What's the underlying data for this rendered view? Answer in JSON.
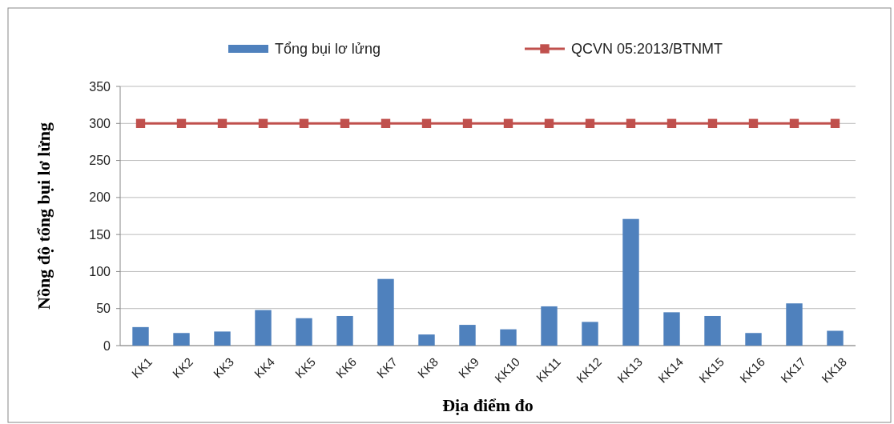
{
  "chart_data": {
    "type": "bar",
    "xlabel": "Địa điểm đo",
    "ylabel": "Nồng độ tổng bụi lơ lửng",
    "categories": [
      "KK1",
      "KK2",
      "KK3",
      "KK4",
      "KK5",
      "KK6",
      "KK7",
      "KK8",
      "KK9",
      "KK10",
      "KK11",
      "KK12",
      "KK13",
      "KK14",
      "KK15",
      "KK16",
      "KK17",
      "KK18"
    ],
    "series": [
      {
        "name": "Tổng bụi lơ lửng",
        "color": "#4f81bd",
        "values": [
          25,
          17,
          19,
          48,
          37,
          40,
          90,
          15,
          28,
          22,
          53,
          32,
          171,
          45,
          40,
          17,
          57,
          20
        ]
      },
      {
        "name": "QCVN 05:2013/BTNMT",
        "type": "line",
        "color": "#c0504d",
        "marker": "square",
        "values": [
          300,
          300,
          300,
          300,
          300,
          300,
          300,
          300,
          300,
          300,
          300,
          300,
          300,
          300,
          300,
          300,
          300,
          300
        ]
      }
    ],
    "ylim": [
      0,
      350
    ],
    "yticks": [
      0,
      50,
      100,
      150,
      200,
      250,
      300,
      350
    ],
    "grid": "y",
    "legend": "top"
  }
}
